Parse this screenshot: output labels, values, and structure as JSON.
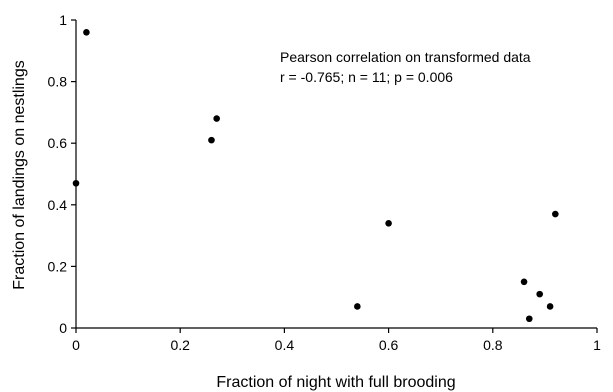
{
  "chart_data": {
    "type": "scatter",
    "title": "",
    "xlabel": "Fraction of night with full brooding",
    "ylabel": "Fraction of landings on nestlings",
    "xlim": [
      0,
      1
    ],
    "ylim": [
      0,
      1
    ],
    "grid": false,
    "legend": "none",
    "xticks": [
      "0",
      "0.2",
      "0.4",
      "0.6",
      "0.8",
      "1"
    ],
    "yticks": [
      "0",
      "0.2",
      "0.4",
      "0.6",
      "0.8",
      "1"
    ],
    "annotation": {
      "line1": "Pearson correlation on transformed data",
      "line2": "r = -0.765; n = 11; p = 0.006"
    },
    "points": [
      {
        "x": 0.0,
        "y": 0.47
      },
      {
        "x": 0.02,
        "y": 0.96
      },
      {
        "x": 0.26,
        "y": 0.61
      },
      {
        "x": 0.27,
        "y": 0.68
      },
      {
        "x": 0.54,
        "y": 0.07
      },
      {
        "x": 0.6,
        "y": 0.34
      },
      {
        "x": 0.86,
        "y": 0.15
      },
      {
        "x": 0.87,
        "y": 0.03
      },
      {
        "x": 0.89,
        "y": 0.11
      },
      {
        "x": 0.91,
        "y": 0.07
      },
      {
        "x": 0.92,
        "y": 0.37
      }
    ],
    "colors": {
      "points": "#000000",
      "axes": "#000000",
      "background": "#ffffff"
    }
  }
}
